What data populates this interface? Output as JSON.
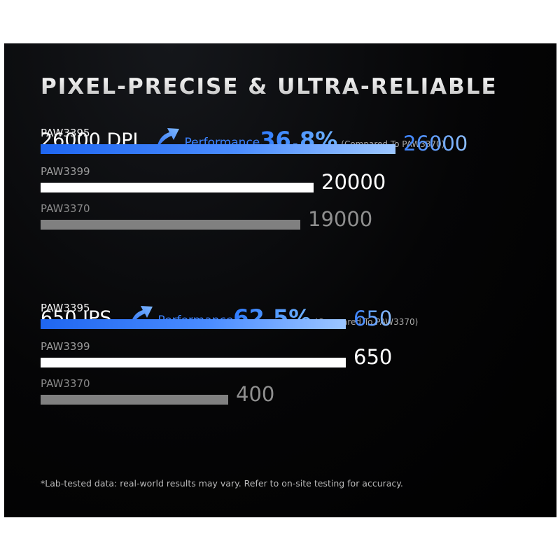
{
  "title": "PIXEL-PRECISE & ULTRA-RELIABLE",
  "footnote": "*Lab-tested data: real-world results may vary. Refer to on-site testing for accuracy.",
  "colors": {
    "accent": "#3b82ff",
    "accent_light": "#9cc6ff",
    "white_bar": "#ffffff",
    "gray_bar": "#808080",
    "gray_text": "#8f8f8f",
    "background": "#000000"
  },
  "icons": {
    "performance_arrow": "curved-up-arrow-icon"
  },
  "chart_data": [
    {
      "type": "bar",
      "orientation": "horizontal",
      "metric_label": "26000 DPI",
      "performance_label": "Performance",
      "performance_value": "36.8%",
      "comparison_note": "(Compared To PAW3370)",
      "scale_max": 26000,
      "categories": [
        "PAW3395",
        "PAW3399",
        "PAW3370"
      ],
      "values": [
        26000,
        20000,
        19000
      ],
      "value_labels": [
        "26000",
        "20000",
        "19000"
      ],
      "bar_styles": [
        "blue-gradient",
        "white",
        "gray"
      ]
    },
    {
      "type": "bar",
      "orientation": "horizontal",
      "metric_label": "650 IPS",
      "performance_label": "Performance",
      "performance_value": "62.5%",
      "comparison_note": "(Compared To PAW3370)",
      "scale_max": 650,
      "categories": [
        "PAW3395",
        "PAW3399",
        "PAW3370"
      ],
      "values": [
        650,
        650,
        400
      ],
      "value_labels": [
        "650",
        "650",
        "400"
      ],
      "bar_styles": [
        "blue-gradient",
        "white",
        "gray"
      ]
    }
  ]
}
